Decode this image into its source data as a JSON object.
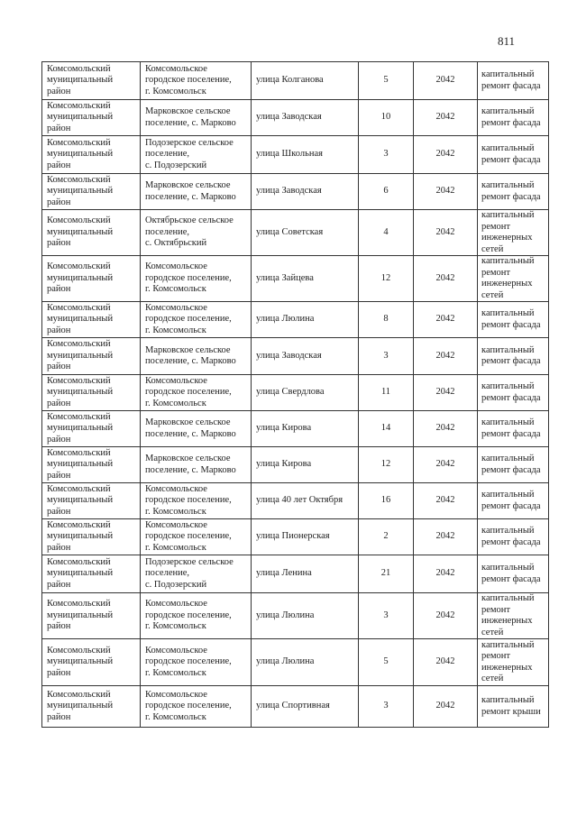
{
  "page_number": "811",
  "rows": [
    {
      "district": "Комсомольский\nмуниципальный\nрайон",
      "settlement": "Комсомольское\nгородское поселение,\nг. Комсомольск",
      "street": "улица Колганова",
      "house": "5",
      "year": "2042",
      "work": "капитальный\nремонт фасада"
    },
    {
      "district": "Комсомольский\nмуниципальный\nрайон",
      "settlement": "Марковское сельское\nпоселение, с. Марково",
      "street": "улица  Заводская",
      "house": "10",
      "year": "2042",
      "work": "капитальный\nремонт фасада"
    },
    {
      "district": "Комсомольский\nмуниципальный\nрайон",
      "settlement": "Подозерское сельское\nпоселение,\nс. Подозерский",
      "street": "улица  Школьная",
      "house": "3",
      "year": "2042",
      "work": "капитальный\nремонт фасада"
    },
    {
      "district": "Комсомольский\nмуниципальный\nрайон",
      "settlement": "Марковское сельское\nпоселение, с. Марково",
      "street": "улица  Заводская",
      "house": "6",
      "year": "2042",
      "work": "капитальный\nремонт фасада"
    },
    {
      "district": "Комсомольский\nмуниципальный\nрайон",
      "settlement": "Октябрьское сельское\nпоселение,\nс. Октябрьский",
      "street": "улица  Советская",
      "house": "4",
      "year": "2042",
      "work": "капитальный\nремонт\nинженерных\nсетей"
    },
    {
      "district": "Комсомольский\nмуниципальный\nрайон",
      "settlement": "Комсомольское\nгородское поселение,\nг. Комсомольск",
      "street": "улица  Зайцева",
      "house": "12",
      "year": "2042",
      "work": "капитальный\nремонт\nинженерных\nсетей"
    },
    {
      "district": "Комсомольский\nмуниципальный\nрайон",
      "settlement": "Комсомольское\nгородское поселение,\nг. Комсомольск",
      "street": "улица Люлина",
      "house": "8",
      "year": "2042",
      "work": "капитальный\nремонт фасада"
    },
    {
      "district": "Комсомольский\nмуниципальный\nрайон",
      "settlement": "Марковское сельское\nпоселение, с. Марково",
      "street": "улица  Заводская",
      "house": "3",
      "year": "2042",
      "work": "капитальный\nремонт фасада"
    },
    {
      "district": "Комсомольский\nмуниципальный\nрайон",
      "settlement": "Комсомольское\nгородское поселение,\nг. Комсомольск",
      "street": "улица Свердлова",
      "house": "11",
      "year": "2042",
      "work": "капитальный\nремонт фасада"
    },
    {
      "district": "Комсомольский\nмуниципальный\nрайон",
      "settlement": "Марковское сельское\nпоселение, с. Марково",
      "street": "улица Кирова",
      "house": "14",
      "year": "2042",
      "work": "капитальный\nремонт фасада"
    },
    {
      "district": "Комсомольский\nмуниципальный\nрайон",
      "settlement": "Марковское сельское\nпоселение, с. Марково",
      "street": "улица Кирова",
      "house": "12",
      "year": "2042",
      "work": "капитальный\nремонт фасада"
    },
    {
      "district": "Комсомольский\nмуниципальный\nрайон",
      "settlement": "Комсомольское\nгородское поселение,\nг. Комсомольск",
      "street": "улица  40 лет Октября",
      "house": "16",
      "year": "2042",
      "work": "капитальный\nремонт фасада"
    },
    {
      "district": "Комсомольский\nмуниципальный\nрайон",
      "settlement": "Комсомольское\nгородское поселение,\nг. Комсомольск",
      "street": " улица Пионерская",
      "house": "2",
      "year": "2042",
      "work": "капитальный\nремонт фасада"
    },
    {
      "district": "Комсомольский\nмуниципальный\nрайон",
      "settlement": "Подозерское сельское\nпоселение,\nс. Подозерский",
      "street": "улица Ленина",
      "house": "21",
      "year": "2042",
      "work": "капитальный\nремонт фасада"
    },
    {
      "district": "Комсомольский\nмуниципальный\nрайон",
      "settlement": "Комсомольское\nгородское поселение,\nг. Комсомольск",
      "street": "улица Люлина",
      "house": "3",
      "year": "2042",
      "work": "капитальный\nремонт\nинженерных\nсетей"
    },
    {
      "district": "Комсомольский\nмуниципальный\nрайон",
      "settlement": "Комсомольское\nгородское поселение,\nг. Комсомольск",
      "street": "улица Люлина",
      "house": "5",
      "year": "2042",
      "work": "капитальный\nремонт\nинженерных\nсетей"
    },
    {
      "district": "Комсомольский\nмуниципальный\nрайон",
      "settlement": "Комсомольское\nгородское поселение,\nг. Комсомольск",
      "street": "улица Спортивная",
      "house": "3",
      "year": "2042",
      "work": "капитальный\nремонт крыши"
    }
  ]
}
